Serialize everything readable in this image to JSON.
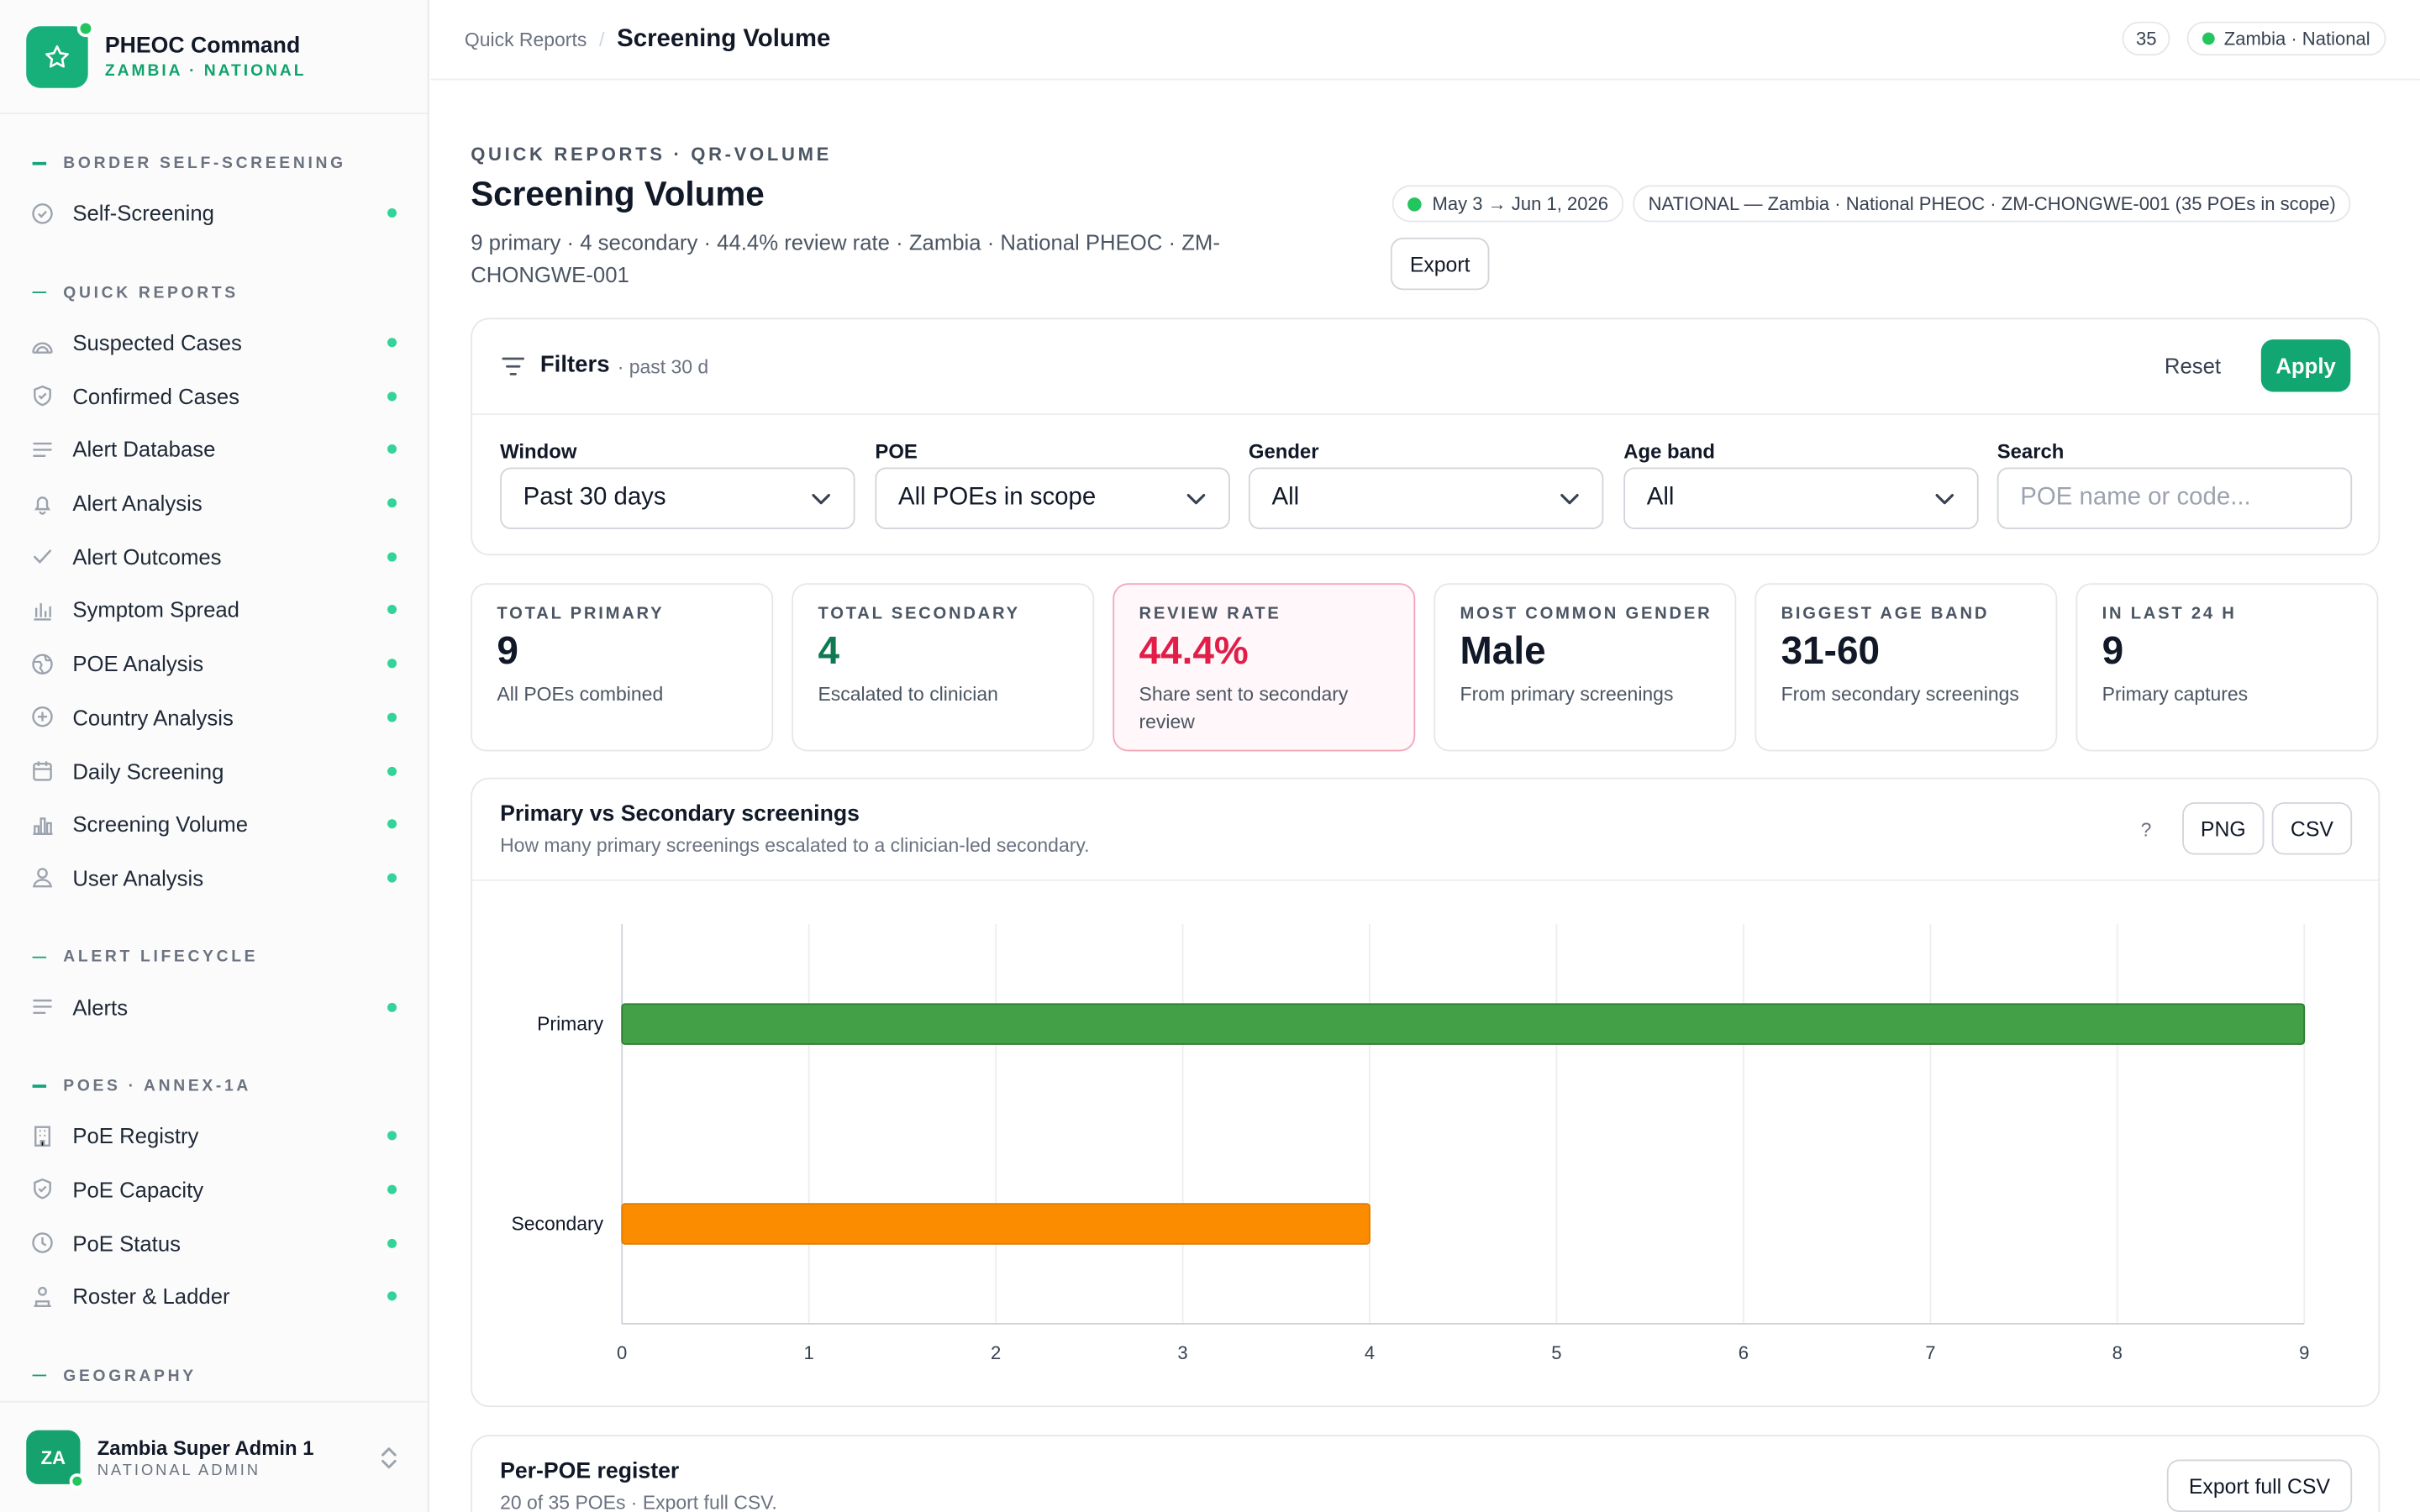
{
  "brand": {
    "title": "PHEOC Command",
    "subtitle": "ZAMBIA · NATIONAL"
  },
  "sidebar": {
    "sections": [
      {
        "title": "BORDER SELF-SCREENING",
        "items": [
          {
            "label": "Self-Screening",
            "icon": "check-circle-icon"
          }
        ]
      },
      {
        "title": "QUICK REPORTS",
        "items": [
          {
            "label": "Suspected Cases",
            "icon": "radar-icon"
          },
          {
            "label": "Confirmed Cases",
            "icon": "shield-check-icon"
          },
          {
            "label": "Alert Database",
            "icon": "lines-icon"
          },
          {
            "label": "Alert Analysis",
            "icon": "bell-icon"
          },
          {
            "label": "Alert Outcomes",
            "icon": "checkmark-icon"
          },
          {
            "label": "Symptom Spread",
            "icon": "bar-chart-icon"
          },
          {
            "label": "POE Analysis",
            "icon": "globe-icon"
          },
          {
            "label": "Country Analysis",
            "icon": "plus-circle-icon"
          },
          {
            "label": "Daily Screening",
            "icon": "calendar-icon"
          },
          {
            "label": "Screening Volume",
            "icon": "column-chart-icon"
          },
          {
            "label": "User Analysis",
            "icon": "user-icon"
          }
        ]
      },
      {
        "title": "ALERT LIFECYCLE",
        "items": [
          {
            "label": "Alerts",
            "icon": "lines-icon"
          }
        ]
      },
      {
        "title": "POES · ANNEX-1A",
        "items": [
          {
            "label": "PoE Registry",
            "icon": "building-icon"
          },
          {
            "label": "PoE Capacity",
            "icon": "shield-check-icon"
          },
          {
            "label": "PoE Status",
            "icon": "clock-icon"
          },
          {
            "label": "Roster & Ladder",
            "icon": "roster-icon"
          }
        ]
      },
      {
        "title": "GEOGRAPHY",
        "items": []
      }
    ]
  },
  "user": {
    "initials": "ZA",
    "name": "Zambia Super Admin 1",
    "role": "NATIONAL ADMIN"
  },
  "topbar": {
    "crumb_parent": "Quick Reports",
    "crumb_current": "Screening Volume",
    "count": "35",
    "scope": "Zambia · National"
  },
  "page": {
    "eyebrow": "QUICK REPORTS · QR-VOLUME",
    "title": "Screening Volume",
    "subtitle": "9 primary · 4 secondary · 44.4% review rate · Zambia · National PHEOC · ZM-CHONGWE-001",
    "date_range": "May 3 → Jun 1, 2026",
    "scope_chip": "NATIONAL — Zambia · National PHEOC · ZM-CHONGWE-001 (35 POEs in scope)",
    "export_label": "Export"
  },
  "filters": {
    "title": "Filters",
    "meta": "· past 30 d",
    "reset_label": "Reset",
    "apply_label": "Apply",
    "fields": [
      {
        "label": "Window",
        "value": "Past 30 days"
      },
      {
        "label": "POE",
        "value": "All POEs in scope"
      },
      {
        "label": "Gender",
        "value": "All"
      },
      {
        "label": "Age band",
        "value": "All"
      },
      {
        "label": "Search",
        "placeholder": "POE name or code..."
      }
    ]
  },
  "kpis": [
    {
      "label": "TOTAL PRIMARY",
      "value": "9",
      "desc": "All POEs combined",
      "color": "#111827"
    },
    {
      "label": "TOTAL SECONDARY",
      "value": "4",
      "desc": "Escalated to clinician",
      "color": "#0f7a52"
    },
    {
      "label": "REVIEW RATE",
      "value": "44.4%",
      "desc": "Share sent to secondary review",
      "color": "#e11d48"
    },
    {
      "label": "MOST COMMON GENDER",
      "value": "Male",
      "desc": "From primary screenings",
      "color": "#111827"
    },
    {
      "label": "BIGGEST AGE BAND",
      "value": "31-60",
      "desc": "From secondary screenings",
      "color": "#111827"
    },
    {
      "label": "IN LAST 24 H",
      "value": "9",
      "desc": "Primary captures",
      "color": "#111827"
    }
  ],
  "chart_panel": {
    "title": "Primary vs Secondary screenings",
    "subtitle": "How many primary screenings escalated to a clinician-led secondary.",
    "help": "?",
    "png_label": "PNG",
    "csv_label": "CSV"
  },
  "chart_data": {
    "type": "bar",
    "orientation": "horizontal",
    "categories": [
      "Primary",
      "Secondary"
    ],
    "values": [
      9,
      4
    ],
    "colors": [
      "#43a047",
      "#fb8c00"
    ],
    "xlim": [
      0,
      9
    ],
    "xticks": [
      "0",
      "1",
      "2",
      "3",
      "4",
      "5",
      "6",
      "7",
      "8",
      "9"
    ],
    "grid": true,
    "legend": "none"
  },
  "register": {
    "title": "Per-POE register",
    "meta": "20 of 35 POEs · Export full CSV.",
    "export_label": "Export full CSV"
  }
}
